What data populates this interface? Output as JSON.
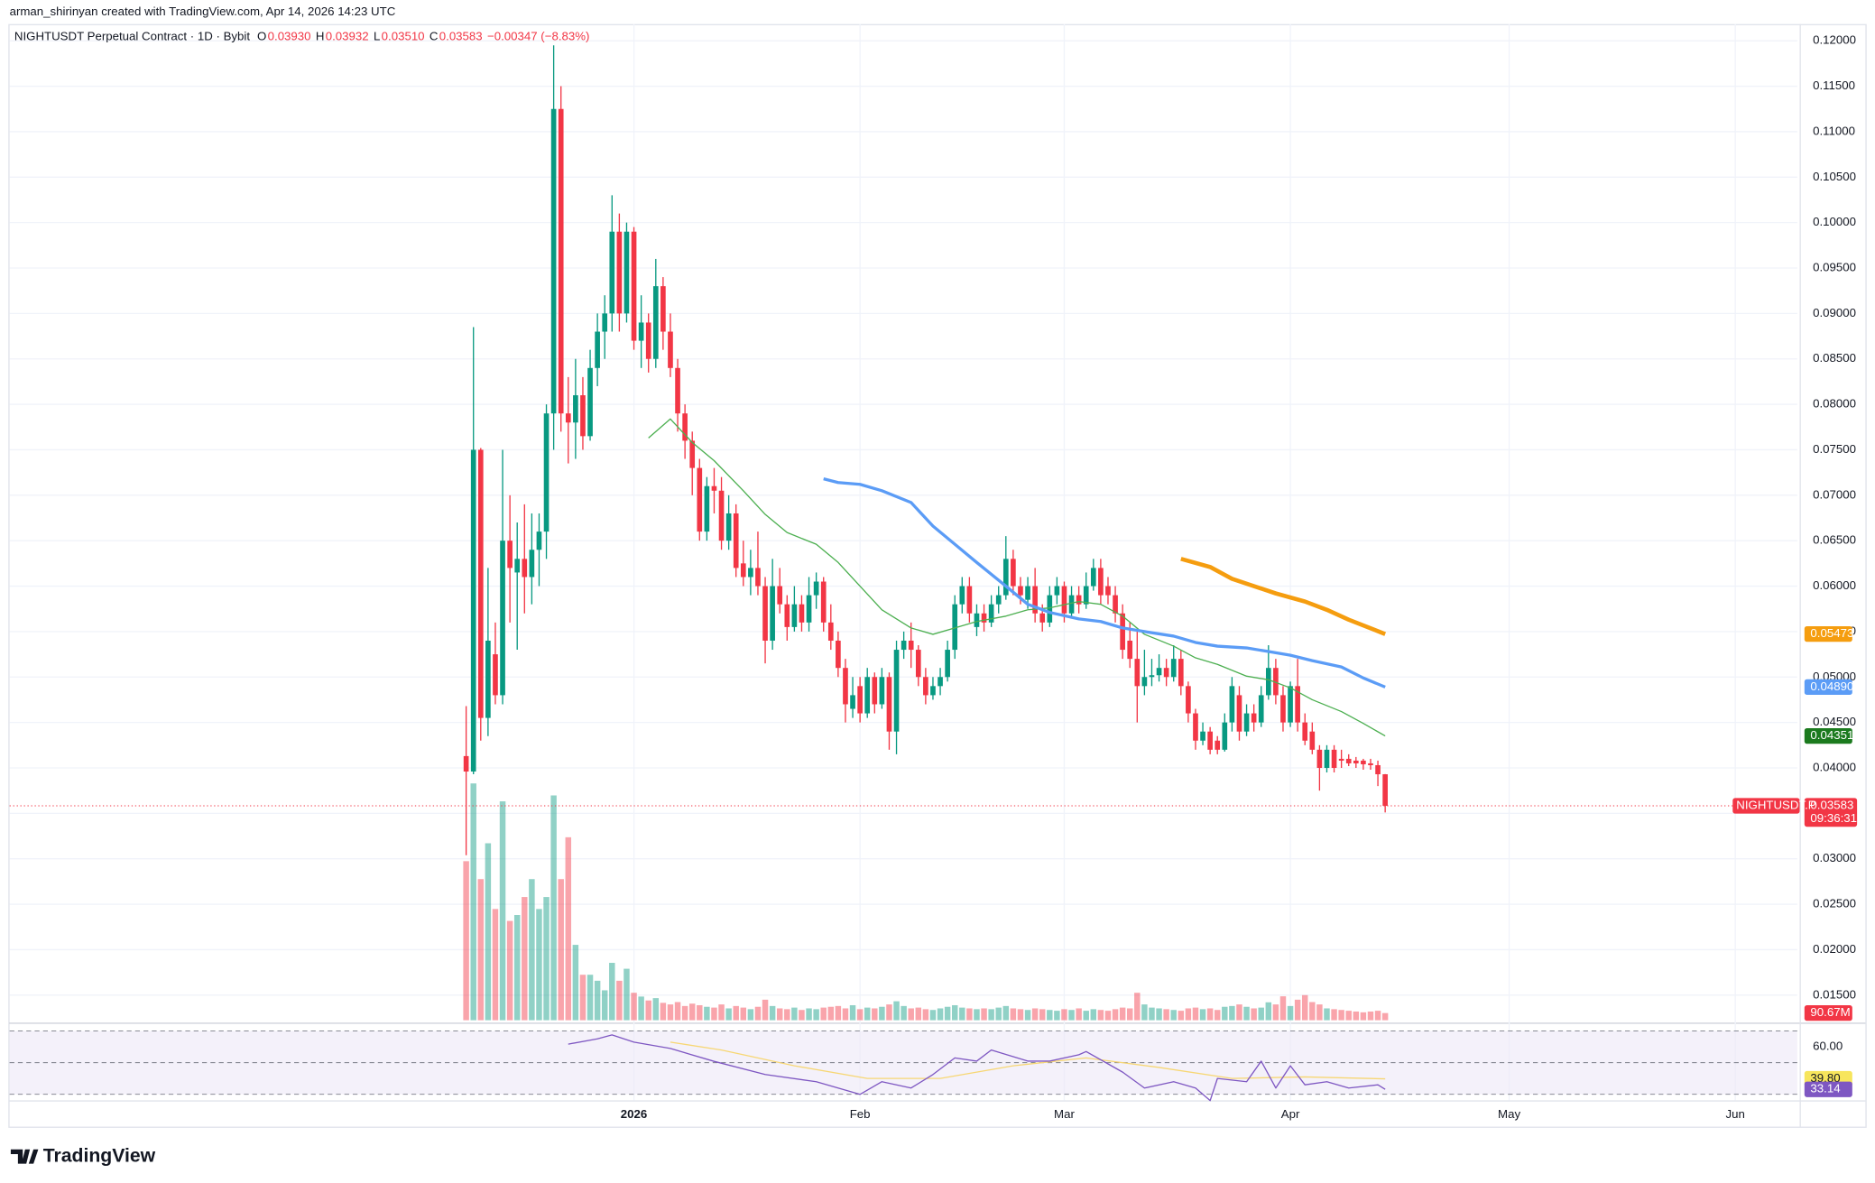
{
  "header": {
    "credit": "arman_shirinyan created with TradingView.com, Apr 14, 2026 14:23 UTC",
    "logo": "TradingView"
  },
  "chart_data": {
    "type": "candlestick",
    "legend": {
      "symbol": "NIGHTUSDT Perpetual Contract · 1D · Bybit",
      "items": [
        {
          "key": "O",
          "value": "0.03930"
        },
        {
          "key": "H",
          "value": "0.03932"
        },
        {
          "key": "L",
          "value": "0.03510"
        },
        {
          "key": "C",
          "value": "0.03583"
        }
      ],
      "change": "−0.00347 (−8.83%)"
    },
    "up_color": "#089981",
    "down_color": "#f23645",
    "xlim": [
      -62.6,
      182.5
    ],
    "xticks": [
      {
        "value": 23,
        "label": "2026"
      },
      {
        "value": 54,
        "label": "Feb"
      },
      {
        "value": 82,
        "label": "Mar"
      },
      {
        "value": 113,
        "label": "Apr"
      },
      {
        "value": 143,
        "label": "May"
      },
      {
        "value": 174,
        "label": "Jun"
      }
    ],
    "ylim": [
      0.01224,
      0.12184
    ],
    "yticks": [
      {
        "value": 0.015,
        "label": "0.01500"
      },
      {
        "value": 0.02,
        "label": "0.02000"
      },
      {
        "value": 0.025,
        "label": "0.02500"
      },
      {
        "value": 0.03,
        "label": "0.03000"
      },
      {
        "value": 0.035,
        "label": "0.03500"
      },
      {
        "value": 0.04,
        "label": "0.04000"
      },
      {
        "value": 0.045,
        "label": "0.04500"
      },
      {
        "value": 0.05,
        "label": "0.05000"
      },
      {
        "value": 0.055,
        "label": "0.05500"
      },
      {
        "value": 0.06,
        "label": "0.06000"
      },
      {
        "value": 0.065,
        "label": "0.06500"
      },
      {
        "value": 0.07,
        "label": "0.07000"
      },
      {
        "value": 0.075,
        "label": "0.07500"
      },
      {
        "value": 0.08,
        "label": "0.08000"
      },
      {
        "value": 0.085,
        "label": "0.08500"
      },
      {
        "value": 0.09,
        "label": "0.09000"
      },
      {
        "value": 0.095,
        "label": "0.09500"
      },
      {
        "value": 0.1,
        "label": "0.10000"
      },
      {
        "value": 0.105,
        "label": "0.10500"
      },
      {
        "value": 0.11,
        "label": "0.11000"
      },
      {
        "value": 0.115,
        "label": "0.11500"
      },
      {
        "value": 0.12,
        "label": "0.12000"
      }
    ],
    "candles": [
      [
        0.0413,
        0.0468,
        0.0304,
        0.0396
      ],
      [
        0.0396,
        0.0885,
        0.0393,
        0.075
      ],
      [
        0.075,
        0.0752,
        0.043,
        0.0455
      ],
      [
        0.0455,
        0.062,
        0.0435,
        0.054
      ],
      [
        0.0525,
        0.056,
        0.047,
        0.048
      ],
      [
        0.048,
        0.075,
        0.047,
        0.065
      ],
      [
        0.065,
        0.07,
        0.056,
        0.062
      ],
      [
        0.0615,
        0.067,
        0.053,
        0.063
      ],
      [
        0.063,
        0.069,
        0.057,
        0.061
      ],
      [
        0.061,
        0.068,
        0.058,
        0.064
      ],
      [
        0.064,
        0.068,
        0.06,
        0.066
      ],
      [
        0.066,
        0.08,
        0.063,
        0.079
      ],
      [
        0.079,
        0.1195,
        0.075,
        0.1125
      ],
      [
        0.1125,
        0.115,
        0.077,
        0.079
      ],
      [
        0.079,
        0.083,
        0.0735,
        0.078
      ],
      [
        0.078,
        0.085,
        0.074,
        0.081
      ],
      [
        0.081,
        0.083,
        0.075,
        0.0765
      ],
      [
        0.0765,
        0.086,
        0.076,
        0.084
      ],
      [
        0.084,
        0.09,
        0.082,
        0.088
      ],
      [
        0.088,
        0.092,
        0.085,
        0.09
      ],
      [
        0.09,
        0.103,
        0.088,
        0.099
      ],
      [
        0.099,
        0.101,
        0.088,
        0.09
      ],
      [
        0.09,
        0.1,
        0.089,
        0.099
      ],
      [
        0.099,
        0.0995,
        0.086,
        0.087
      ],
      [
        0.087,
        0.092,
        0.084,
        0.089
      ],
      [
        0.089,
        0.09,
        0.0835,
        0.085
      ],
      [
        0.085,
        0.096,
        0.084,
        0.093
      ],
      [
        0.093,
        0.094,
        0.086,
        0.088
      ],
      [
        0.088,
        0.09,
        0.083,
        0.084
      ],
      [
        0.084,
        0.085,
        0.077,
        0.079
      ],
      [
        0.079,
        0.08,
        0.074,
        0.076
      ],
      [
        0.076,
        0.077,
        0.07,
        0.073
      ],
      [
        0.073,
        0.074,
        0.065,
        0.066
      ],
      [
        0.066,
        0.072,
        0.065,
        0.071
      ],
      [
        0.071,
        0.073,
        0.068,
        0.0705
      ],
      [
        0.0705,
        0.072,
        0.064,
        0.065
      ],
      [
        0.065,
        0.07,
        0.064,
        0.068
      ],
      [
        0.068,
        0.069,
        0.061,
        0.062
      ],
      [
        0.0625,
        0.065,
        0.06,
        0.061
      ],
      [
        0.061,
        0.064,
        0.059,
        0.062
      ],
      [
        0.062,
        0.066,
        0.059,
        0.06
      ],
      [
        0.06,
        0.061,
        0.0515,
        0.054
      ],
      [
        0.054,
        0.063,
        0.053,
        0.06
      ],
      [
        0.06,
        0.062,
        0.057,
        0.058
      ],
      [
        0.058,
        0.059,
        0.054,
        0.0555
      ],
      [
        0.0555,
        0.06,
        0.055,
        0.058
      ],
      [
        0.058,
        0.059,
        0.055,
        0.056
      ],
      [
        0.056,
        0.061,
        0.055,
        0.059
      ],
      [
        0.059,
        0.0615,
        0.0575,
        0.0605
      ],
      [
        0.0605,
        0.061,
        0.055,
        0.056
      ],
      [
        0.056,
        0.058,
        0.053,
        0.054
      ],
      [
        0.054,
        0.055,
        0.05,
        0.051
      ],
      [
        0.051,
        0.052,
        0.045,
        0.047
      ],
      [
        0.0465,
        0.05,
        0.0455,
        0.048
      ],
      [
        0.049,
        0.05,
        0.045,
        0.046
      ],
      [
        0.046,
        0.051,
        0.0455,
        0.05
      ],
      [
        0.05,
        0.0505,
        0.046,
        0.047
      ],
      [
        0.047,
        0.051,
        0.0465,
        0.05
      ],
      [
        0.05,
        0.0505,
        0.042,
        0.044
      ],
      [
        0.044,
        0.054,
        0.0415,
        0.053
      ],
      [
        0.053,
        0.055,
        0.052,
        0.054
      ],
      [
        0.054,
        0.056,
        0.051,
        0.053
      ],
      [
        0.053,
        0.0535,
        0.049,
        0.05
      ],
      [
        0.05,
        0.051,
        0.047,
        0.048
      ],
      [
        0.048,
        0.05,
        0.0475,
        0.049
      ],
      [
        0.049,
        0.051,
        0.048,
        0.05
      ],
      [
        0.05,
        0.054,
        0.0495,
        0.053
      ],
      [
        0.053,
        0.059,
        0.052,
        0.058
      ],
      [
        0.058,
        0.061,
        0.057,
        0.06
      ],
      [
        0.06,
        0.061,
        0.056,
        0.057
      ],
      [
        0.0555,
        0.058,
        0.0545,
        0.057
      ],
      [
        0.057,
        0.058,
        0.055,
        0.056
      ],
      [
        0.056,
        0.059,
        0.0555,
        0.058
      ],
      [
        0.058,
        0.06,
        0.057,
        0.059
      ],
      [
        0.059,
        0.0655,
        0.0585,
        0.063
      ],
      [
        0.063,
        0.064,
        0.059,
        0.06
      ],
      [
        0.06,
        0.061,
        0.058,
        0.059
      ],
      [
        0.0585,
        0.061,
        0.0575,
        0.06
      ],
      [
        0.06,
        0.062,
        0.056,
        0.057
      ],
      [
        0.057,
        0.058,
        0.055,
        0.056
      ],
      [
        0.056,
        0.06,
        0.0555,
        0.059
      ],
      [
        0.059,
        0.061,
        0.058,
        0.06
      ],
      [
        0.06,
        0.0605,
        0.056,
        0.057
      ],
      [
        0.057,
        0.06,
        0.0565,
        0.059
      ],
      [
        0.059,
        0.06,
        0.057,
        0.058
      ],
      [
        0.058,
        0.0615,
        0.0575,
        0.06
      ],
      [
        0.06,
        0.063,
        0.0595,
        0.062
      ],
      [
        0.062,
        0.063,
        0.058,
        0.059
      ],
      [
        0.06,
        0.061,
        0.058,
        0.059
      ],
      [
        0.059,
        0.06,
        0.056,
        0.057
      ],
      [
        0.057,
        0.058,
        0.052,
        0.053
      ],
      [
        0.054,
        0.056,
        0.051,
        0.052
      ],
      [
        0.052,
        0.055,
        0.045,
        0.049
      ],
      [
        0.049,
        0.053,
        0.048,
        0.05
      ],
      [
        0.05,
        0.052,
        0.049,
        0.0502
      ],
      [
        0.0502,
        0.0525,
        0.0495,
        0.051
      ],
      [
        0.051,
        0.052,
        0.049,
        0.05
      ],
      [
        0.05,
        0.0535,
        0.0495,
        0.052
      ],
      [
        0.052,
        0.053,
        0.048,
        0.049
      ],
      [
        0.049,
        0.0495,
        0.045,
        0.046
      ],
      [
        0.046,
        0.0465,
        0.042,
        0.043
      ],
      [
        0.043,
        0.045,
        0.0425,
        0.044
      ],
      [
        0.044,
        0.0445,
        0.0415,
        0.042
      ],
      [
        0.043,
        0.0435,
        0.0415,
        0.042
      ],
      [
        0.042,
        0.046,
        0.0418,
        0.045
      ],
      [
        0.045,
        0.05,
        0.044,
        0.049
      ],
      [
        0.048,
        0.049,
        0.043,
        0.044
      ],
      [
        0.044,
        0.047,
        0.0435,
        0.046
      ],
      [
        0.046,
        0.047,
        0.044,
        0.045
      ],
      [
        0.045,
        0.049,
        0.0445,
        0.048
      ],
      [
        0.048,
        0.0535,
        0.0475,
        0.051
      ],
      [
        0.051,
        0.052,
        0.047,
        0.048
      ],
      [
        0.048,
        0.049,
        0.044,
        0.045
      ],
      [
        0.045,
        0.0495,
        0.0445,
        0.049
      ],
      [
        0.049,
        0.052,
        0.044,
        0.045
      ],
      [
        0.045,
        0.046,
        0.0425,
        0.043
      ],
      [
        0.044,
        0.045,
        0.0415,
        0.042
      ],
      [
        0.042,
        0.0425,
        0.0375,
        0.04
      ],
      [
        0.04,
        0.0425,
        0.0395,
        0.042
      ],
      [
        0.042,
        0.0425,
        0.0395,
        0.04
      ],
      [
        0.041,
        0.042,
        0.04,
        0.0408
      ],
      [
        0.041,
        0.0415,
        0.0402,
        0.0405
      ],
      [
        0.0408,
        0.0412,
        0.04,
        0.0405
      ],
      [
        0.0408,
        0.041,
        0.0398,
        0.0404
      ],
      [
        0.0405,
        0.041,
        0.0398,
        0.0403
      ],
      [
        0.0403,
        0.0408,
        0.038,
        0.0393
      ],
      [
        0.0393,
        0.03932,
        0.0351,
        0.03583
      ]
    ],
    "last_label": "0.03583",
    "symbol_tag": "NIGHTUSDT.P",
    "countdown": "09:36:31",
    "volume": {
      "y2lim": [
        0,
        12621
      ],
      "value_label": "90.67M",
      "values": [
        2015,
        3000,
        1788,
        2242,
        1409,
        2773,
        1258,
        1333,
        1561,
        1788,
        1409,
        1561,
        2848,
        1788,
        2318,
        955,
        576,
        576,
        500,
        379,
        727,
        500,
        652,
        348,
        300,
        250,
        280,
        220,
        200,
        230,
        180,
        210,
        190,
        170,
        160,
        200,
        150,
        180,
        160,
        140,
        170,
        260,
        180,
        150,
        140,
        160,
        130,
        150,
        140,
        160,
        170,
        180,
        150,
        190,
        140,
        160,
        150,
        170,
        200,
        240,
        180,
        150,
        160,
        140,
        130,
        150,
        170,
        190,
        160,
        150,
        140,
        150,
        140,
        160,
        180,
        150,
        140,
        130,
        150,
        140,
        130,
        120,
        140,
        130,
        150,
        120,
        140,
        130,
        120,
        140,
        160,
        150,
        348,
        200,
        160,
        150,
        140,
        130,
        120,
        150,
        160,
        140,
        150,
        130,
        170,
        180,
        200,
        170,
        150,
        160,
        227,
        200,
        303,
        180,
        260,
        318,
        230,
        200,
        150,
        140,
        130,
        120,
        110,
        100,
        110,
        120,
        90.67
      ]
    },
    "moving_averages": [
      {
        "color": "#4caf50",
        "x": [
          25,
          28,
          31,
          34,
          38,
          41,
          44,
          48,
          51,
          54,
          57,
          61,
          64,
          67,
          70,
          74,
          77,
          80,
          84,
          87,
          90,
          93,
          97,
          100,
          103,
          107,
          110,
          113,
          116,
          120,
          123,
          126
        ],
        "values": [
          0.0763,
          0.0784,
          0.0758,
          0.0738,
          0.0705,
          0.0679,
          0.0659,
          0.0646,
          0.0626,
          0.06,
          0.0574,
          0.0554,
          0.0547,
          0.0554,
          0.0561,
          0.0567,
          0.0574,
          0.0576,
          0.0583,
          0.058,
          0.0567,
          0.0547,
          0.0534,
          0.0521,
          0.0514,
          0.0501,
          0.0497,
          0.0488,
          0.0475,
          0.0462,
          0.0449,
          0.04351
        ],
        "value_label": "0.04351",
        "label_bg": "#1b7a1e",
        "width": 1
      },
      {
        "color": "#5b9cf6",
        "x": [
          49,
          51,
          54,
          57,
          61,
          64,
          67,
          70,
          74,
          77,
          80,
          84,
          87,
          90,
          93,
          97,
          100,
          103,
          107,
          110,
          113,
          116,
          120,
          123,
          126
        ],
        "values": [
          0.0718,
          0.0714,
          0.0712,
          0.0705,
          0.0692,
          0.0666,
          0.0646,
          0.0626,
          0.06,
          0.058,
          0.0571,
          0.0564,
          0.0561,
          0.0554,
          0.055,
          0.0545,
          0.0538,
          0.0534,
          0.0532,
          0.0528,
          0.0524,
          0.0518,
          0.0511,
          0.0499,
          0.0489
        ],
        "value_label": "0.04890",
        "label_bg": "#5b9cf6",
        "width": 2.5
      },
      {
        "color": "#f59d0f",
        "x": [
          98,
          102,
          105,
          108,
          111,
          115,
          118,
          121,
          126
        ],
        "values": [
          0.063,
          0.0621,
          0.0608,
          0.06,
          0.0592,
          0.0583,
          0.0574,
          0.0563,
          0.05473
        ],
        "value_label": "0.05473",
        "label_bg": "#f59d0f",
        "width": 3.5
      }
    ],
    "rsi": {
      "ylim": [
        27.7,
        73.8
      ],
      "yticks": [
        {
          "value": 60,
          "label": "60.00"
        }
      ],
      "levels": [
        70,
        50,
        30
      ],
      "band_color": "#ede7f6",
      "series": [
        {
          "color": "#f7d774",
          "x": [
            28,
            35,
            45,
            55,
            65,
            75,
            85,
            95,
            105,
            115,
            126
          ],
          "values": [
            63,
            58,
            48,
            40,
            40,
            48,
            53,
            47,
            40,
            41,
            39.8
          ],
          "value_label": "39.80",
          "label_bg": "#f7e55c"
        },
        {
          "color": "#7e57c2",
          "x": [
            14,
            18,
            20,
            23,
            28,
            34,
            41,
            48,
            51,
            54,
            57,
            61,
            64,
            67,
            70,
            72,
            77,
            80,
            84,
            85,
            90,
            93,
            97,
            100,
            102,
            103,
            107,
            109,
            111,
            113,
            115,
            118,
            121,
            125,
            126
          ],
          "values": [
            61.7,
            65,
            67.5,
            63,
            59,
            50.8,
            42.5,
            38,
            34,
            30,
            38,
            34,
            42.5,
            53,
            51,
            58,
            51,
            51,
            55,
            57,
            44,
            34,
            38,
            34,
            26,
            40,
            38,
            51,
            34,
            48,
            36,
            38,
            34,
            36,
            33.14
          ],
          "value_label": "33.14",
          "label_bg": "#7e57c2"
        }
      ]
    }
  }
}
